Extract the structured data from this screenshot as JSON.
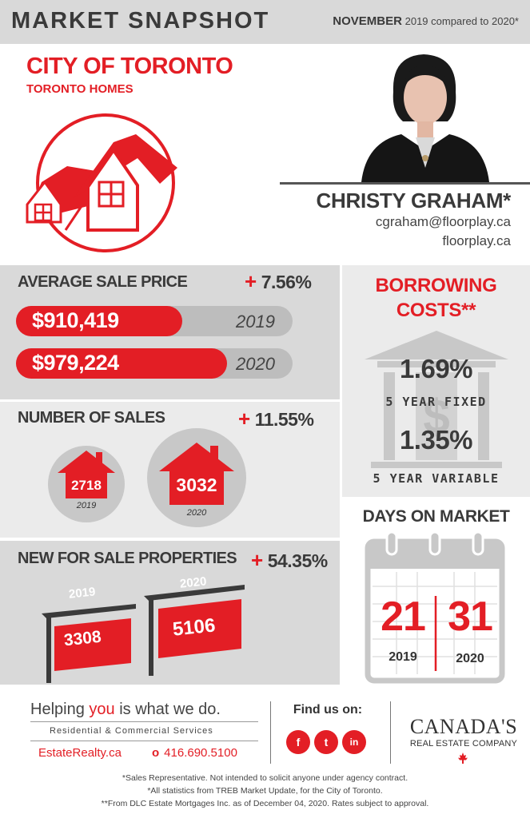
{
  "header": {
    "title": "MARKET SNAPSHOT",
    "month": "NOVEMBER",
    "comparison": "2019 compared to 2020*"
  },
  "city": {
    "title": "CITY OF TORONTO",
    "subtitle": "TORONTO HOMES"
  },
  "agent": {
    "name": "CHRISTY GRAHAM*",
    "email": "cgraham@floorplay.ca",
    "website": "floorplay.ca"
  },
  "average_sale_price": {
    "title": "AVERAGE SALE PRICE",
    "change": "7.56%",
    "rows": [
      {
        "value": "$910,419",
        "year": "2019",
        "fill": 0.93
      },
      {
        "value": "$979,224",
        "year": "2020",
        "fill": 1.0
      }
    ]
  },
  "number_of_sales": {
    "title": "NUMBER OF SALES",
    "change": "11.55%",
    "items": [
      {
        "value": "2718",
        "year": "2019"
      },
      {
        "value": "3032",
        "year": "2020"
      }
    ]
  },
  "new_for_sale": {
    "title": "NEW FOR SALE PROPERTIES",
    "change": "54.35%",
    "items": [
      {
        "value": "3308",
        "year": "2019"
      },
      {
        "value": "5106",
        "year": "2020"
      }
    ]
  },
  "borrowing_costs": {
    "title_line1": "BORROWING",
    "title_line2": "COSTS**",
    "fixed_rate": "1.69%",
    "fixed_label": "5 YEAR FIXED",
    "variable_rate": "1.35%",
    "variable_label": "5 YEAR VARIABLE"
  },
  "days_on_market": {
    "title": "DAYS ON MARKET",
    "items": [
      {
        "value": "21",
        "year": "2019"
      },
      {
        "value": "31",
        "year": "2020"
      }
    ]
  },
  "footer": {
    "tagline_pre": "Helping ",
    "tagline_you": "you",
    "tagline_post": " is what we do.",
    "services": "Residential & Commercial Services",
    "site": "EstateRealty.ca",
    "phone_marker": "o",
    "phone": "416.690.5100",
    "find_us": "Find us on:",
    "social": [
      {
        "icon": "facebook-icon",
        "glyph": "f"
      },
      {
        "icon": "twitter-icon",
        "glyph": "t"
      },
      {
        "icon": "linkedin-icon",
        "glyph": "in"
      }
    ],
    "brand_line1": "CANADA'S",
    "brand_line2": "REAL ESTATE COMPANY"
  },
  "notes": [
    "*Sales Representative. Not intended to solicit anyone under agency contract.",
    "*All statistics from TREB Market Update, for the City of Toronto.",
    "**From DLC Estate Mortgages Inc. as of December 04, 2020. Rates subject to approval."
  ],
  "colors": {
    "accent": "#e31e25",
    "panel_dark": "#d9d9d9",
    "panel_light": "#ebebeb",
    "text": "#3a3a3a"
  }
}
